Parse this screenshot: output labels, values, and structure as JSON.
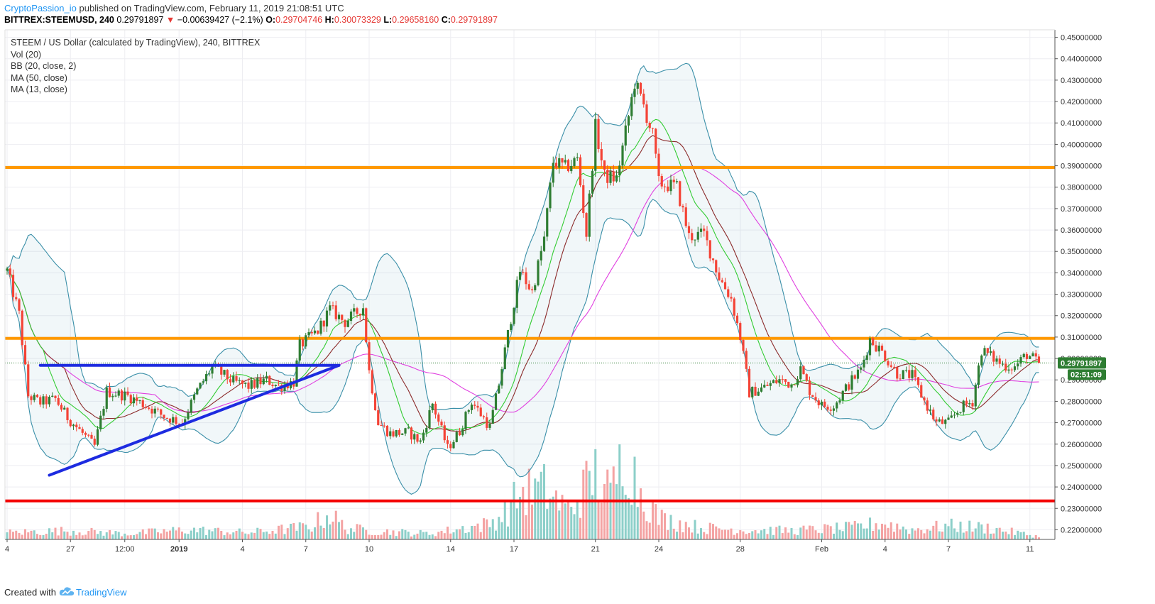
{
  "header": {
    "user": "CryptoPassion_io",
    "published": "published on TradingView.com, February 11, 2019 21:08:51 UTC",
    "symbol": "BITTREX:STEEMUSD, 240",
    "last": "0.29791897",
    "change_arrow": "▼",
    "change": "−0.00639427 (−2.1%)",
    "open_label": "O:",
    "open": "0.29704746",
    "high_label": "H:",
    "high": "0.30073329",
    "low_label": "L:",
    "low": "0.29658160",
    "close_label": "C:",
    "close": "0.29791897"
  },
  "legend": {
    "title": "STEEM / US Dollar (calculated by TradingView), 240, BITTREX",
    "vol": "Vol (20)",
    "bb": "BB (20, close, 2)",
    "ma50": "MA (50, close)",
    "ma13": "MA (13, close)"
  },
  "footer": {
    "created": "Created with",
    "brand": "TradingView"
  },
  "colors": {
    "up": "#2e7d32",
    "down": "#f44336",
    "bb": "#3a8fa8",
    "ma13": "#33cc33",
    "ma50": "#e040e0",
    "ma20": "#8b2a2a",
    "orange": "#ff9800",
    "red": "#f40000",
    "blue": "#1d2be0"
  },
  "chart_data": {
    "type": "candlestick",
    "y_ticks": [
      "0.45000000",
      "0.44000000",
      "0.43000000",
      "0.42000000",
      "0.41000000",
      "0.40000000",
      "0.39000000",
      "0.38000000",
      "0.37000000",
      "0.36000000",
      "0.35000000",
      "0.34000000",
      "0.33000000",
      "0.32000000",
      "0.31000000",
      "0.30000000",
      "0.29000000",
      "0.28000000",
      "0.27000000",
      "0.26000000",
      "0.25000000",
      "0.24000000",
      "0.23000000",
      "0.22000000"
    ],
    "ylim": [
      0.2155,
      0.4535
    ],
    "x_ticks": [
      {
        "label": "4",
        "idx": 0
      },
      {
        "label": "27",
        "idx": 21
      },
      {
        "label": "12:00",
        "idx": 39
      },
      {
        "label": "2019",
        "idx": 57
      },
      {
        "label": "4",
        "idx": 78
      },
      {
        "label": "7",
        "idx": 99
      },
      {
        "label": "10",
        "idx": 120
      },
      {
        "label": "14",
        "idx": 147
      },
      {
        "label": "17",
        "idx": 168
      },
      {
        "label": "21",
        "idx": 195
      },
      {
        "label": "24",
        "idx": 216
      },
      {
        "label": "28",
        "idx": 243
      },
      {
        "label": "Feb",
        "idx": 270
      },
      {
        "label": "4",
        "idx": 291
      },
      {
        "label": "7",
        "idx": 312
      },
      {
        "label": "11",
        "idx": 339
      }
    ],
    "last_price": "0.29791897",
    "countdown": "02:51:09",
    "horizontal_levels": [
      {
        "name": "resistance-upper",
        "value": 0.3892,
        "color": "orange"
      },
      {
        "name": "resistance-lower",
        "value": 0.3094,
        "color": "orange"
      },
      {
        "name": "support",
        "value": 0.2335,
        "color": "red"
      }
    ],
    "trendlines": [
      {
        "name": "triangle-top",
        "from": [
          11,
          0.2968
        ],
        "to": [
          110,
          0.2968
        ]
      },
      {
        "name": "triangle-bottom",
        "from": [
          14,
          0.2455
        ],
        "to": [
          110,
          0.2968
        ]
      }
    ],
    "keypoints": [
      [
        0,
        0.341
      ],
      [
        4,
        0.3205
      ],
      [
        7,
        0.2825
      ],
      [
        11,
        0.2795
      ],
      [
        16,
        0.281
      ],
      [
        20,
        0.2725
      ],
      [
        24,
        0.2665
      ],
      [
        29,
        0.259
      ],
      [
        33,
        0.2845
      ],
      [
        40,
        0.2825
      ],
      [
        46,
        0.278
      ],
      [
        52,
        0.273
      ],
      [
        58,
        0.27
      ],
      [
        63,
        0.285
      ],
      [
        68,
        0.296
      ],
      [
        75,
        0.289
      ],
      [
        80,
        0.287
      ],
      [
        86,
        0.29
      ],
      [
        90,
        0.287
      ],
      [
        95,
        0.289
      ],
      [
        97,
        0.306
      ],
      [
        103,
        0.313
      ],
      [
        107,
        0.323
      ],
      [
        112,
        0.317
      ],
      [
        118,
        0.324
      ],
      [
        120,
        0.294
      ],
      [
        123,
        0.27
      ],
      [
        127,
        0.265
      ],
      [
        133,
        0.2655
      ],
      [
        137,
        0.261
      ],
      [
        141,
        0.279
      ],
      [
        146,
        0.258
      ],
      [
        150,
        0.266
      ],
      [
        154,
        0.28
      ],
      [
        160,
        0.268
      ],
      [
        163,
        0.288
      ],
      [
        167,
        0.319
      ],
      [
        170,
        0.341
      ],
      [
        174,
        0.331
      ],
      [
        178,
        0.356
      ],
      [
        181,
        0.392
      ],
      [
        185,
        0.389
      ],
      [
        189,
        0.393
      ],
      [
        192,
        0.358
      ],
      [
        195,
        0.408
      ],
      [
        198,
        0.385
      ],
      [
        202,
        0.384
      ],
      [
        206,
        0.413
      ],
      [
        208,
        0.429
      ],
      [
        211,
        0.418
      ],
      [
        214,
        0.404
      ],
      [
        216,
        0.382
      ],
      [
        222,
        0.38
      ],
      [
        226,
        0.357
      ],
      [
        231,
        0.358
      ],
      [
        236,
        0.338
      ],
      [
        240,
        0.328
      ],
      [
        243,
        0.31
      ],
      [
        246,
        0.284
      ],
      [
        250,
        0.286
      ],
      [
        256,
        0.29
      ],
      [
        260,
        0.288
      ],
      [
        263,
        0.295
      ],
      [
        266,
        0.285
      ],
      [
        270,
        0.278
      ],
      [
        274,
        0.278
      ],
      [
        279,
        0.288
      ],
      [
        283,
        0.295
      ],
      [
        286,
        0.309
      ],
      [
        290,
        0.303
      ],
      [
        295,
        0.293
      ],
      [
        300,
        0.292
      ],
      [
        304,
        0.28
      ],
      [
        308,
        0.27
      ],
      [
        312,
        0.27
      ],
      [
        316,
        0.277
      ],
      [
        320,
        0.28
      ],
      [
        323,
        0.304
      ],
      [
        330,
        0.297
      ],
      [
        334,
        0.296
      ],
      [
        338,
        0.302
      ],
      [
        342,
        0.2979
      ]
    ],
    "volume_keypoints": [
      [
        0,
        0.07
      ],
      [
        20,
        0.09
      ],
      [
        40,
        0.06
      ],
      [
        60,
        0.1
      ],
      [
        80,
        0.07
      ],
      [
        100,
        0.13
      ],
      [
        107,
        0.26
      ],
      [
        112,
        0.12
      ],
      [
        120,
        0.09
      ],
      [
        140,
        0.06
      ],
      [
        150,
        0.11
      ],
      [
        160,
        0.16
      ],
      [
        166,
        0.3
      ],
      [
        170,
        0.48
      ],
      [
        178,
        0.52
      ],
      [
        186,
        0.3
      ],
      [
        195,
        0.68
      ],
      [
        200,
        0.45
      ],
      [
        205,
        0.95
      ],
      [
        209,
        0.55
      ],
      [
        216,
        0.22
      ],
      [
        230,
        0.12
      ],
      [
        243,
        0.1
      ],
      [
        260,
        0.09
      ],
      [
        280,
        0.12
      ],
      [
        290,
        0.17
      ],
      [
        300,
        0.1
      ],
      [
        312,
        0.14
      ],
      [
        325,
        0.12
      ],
      [
        342,
        0.03
      ]
    ]
  }
}
